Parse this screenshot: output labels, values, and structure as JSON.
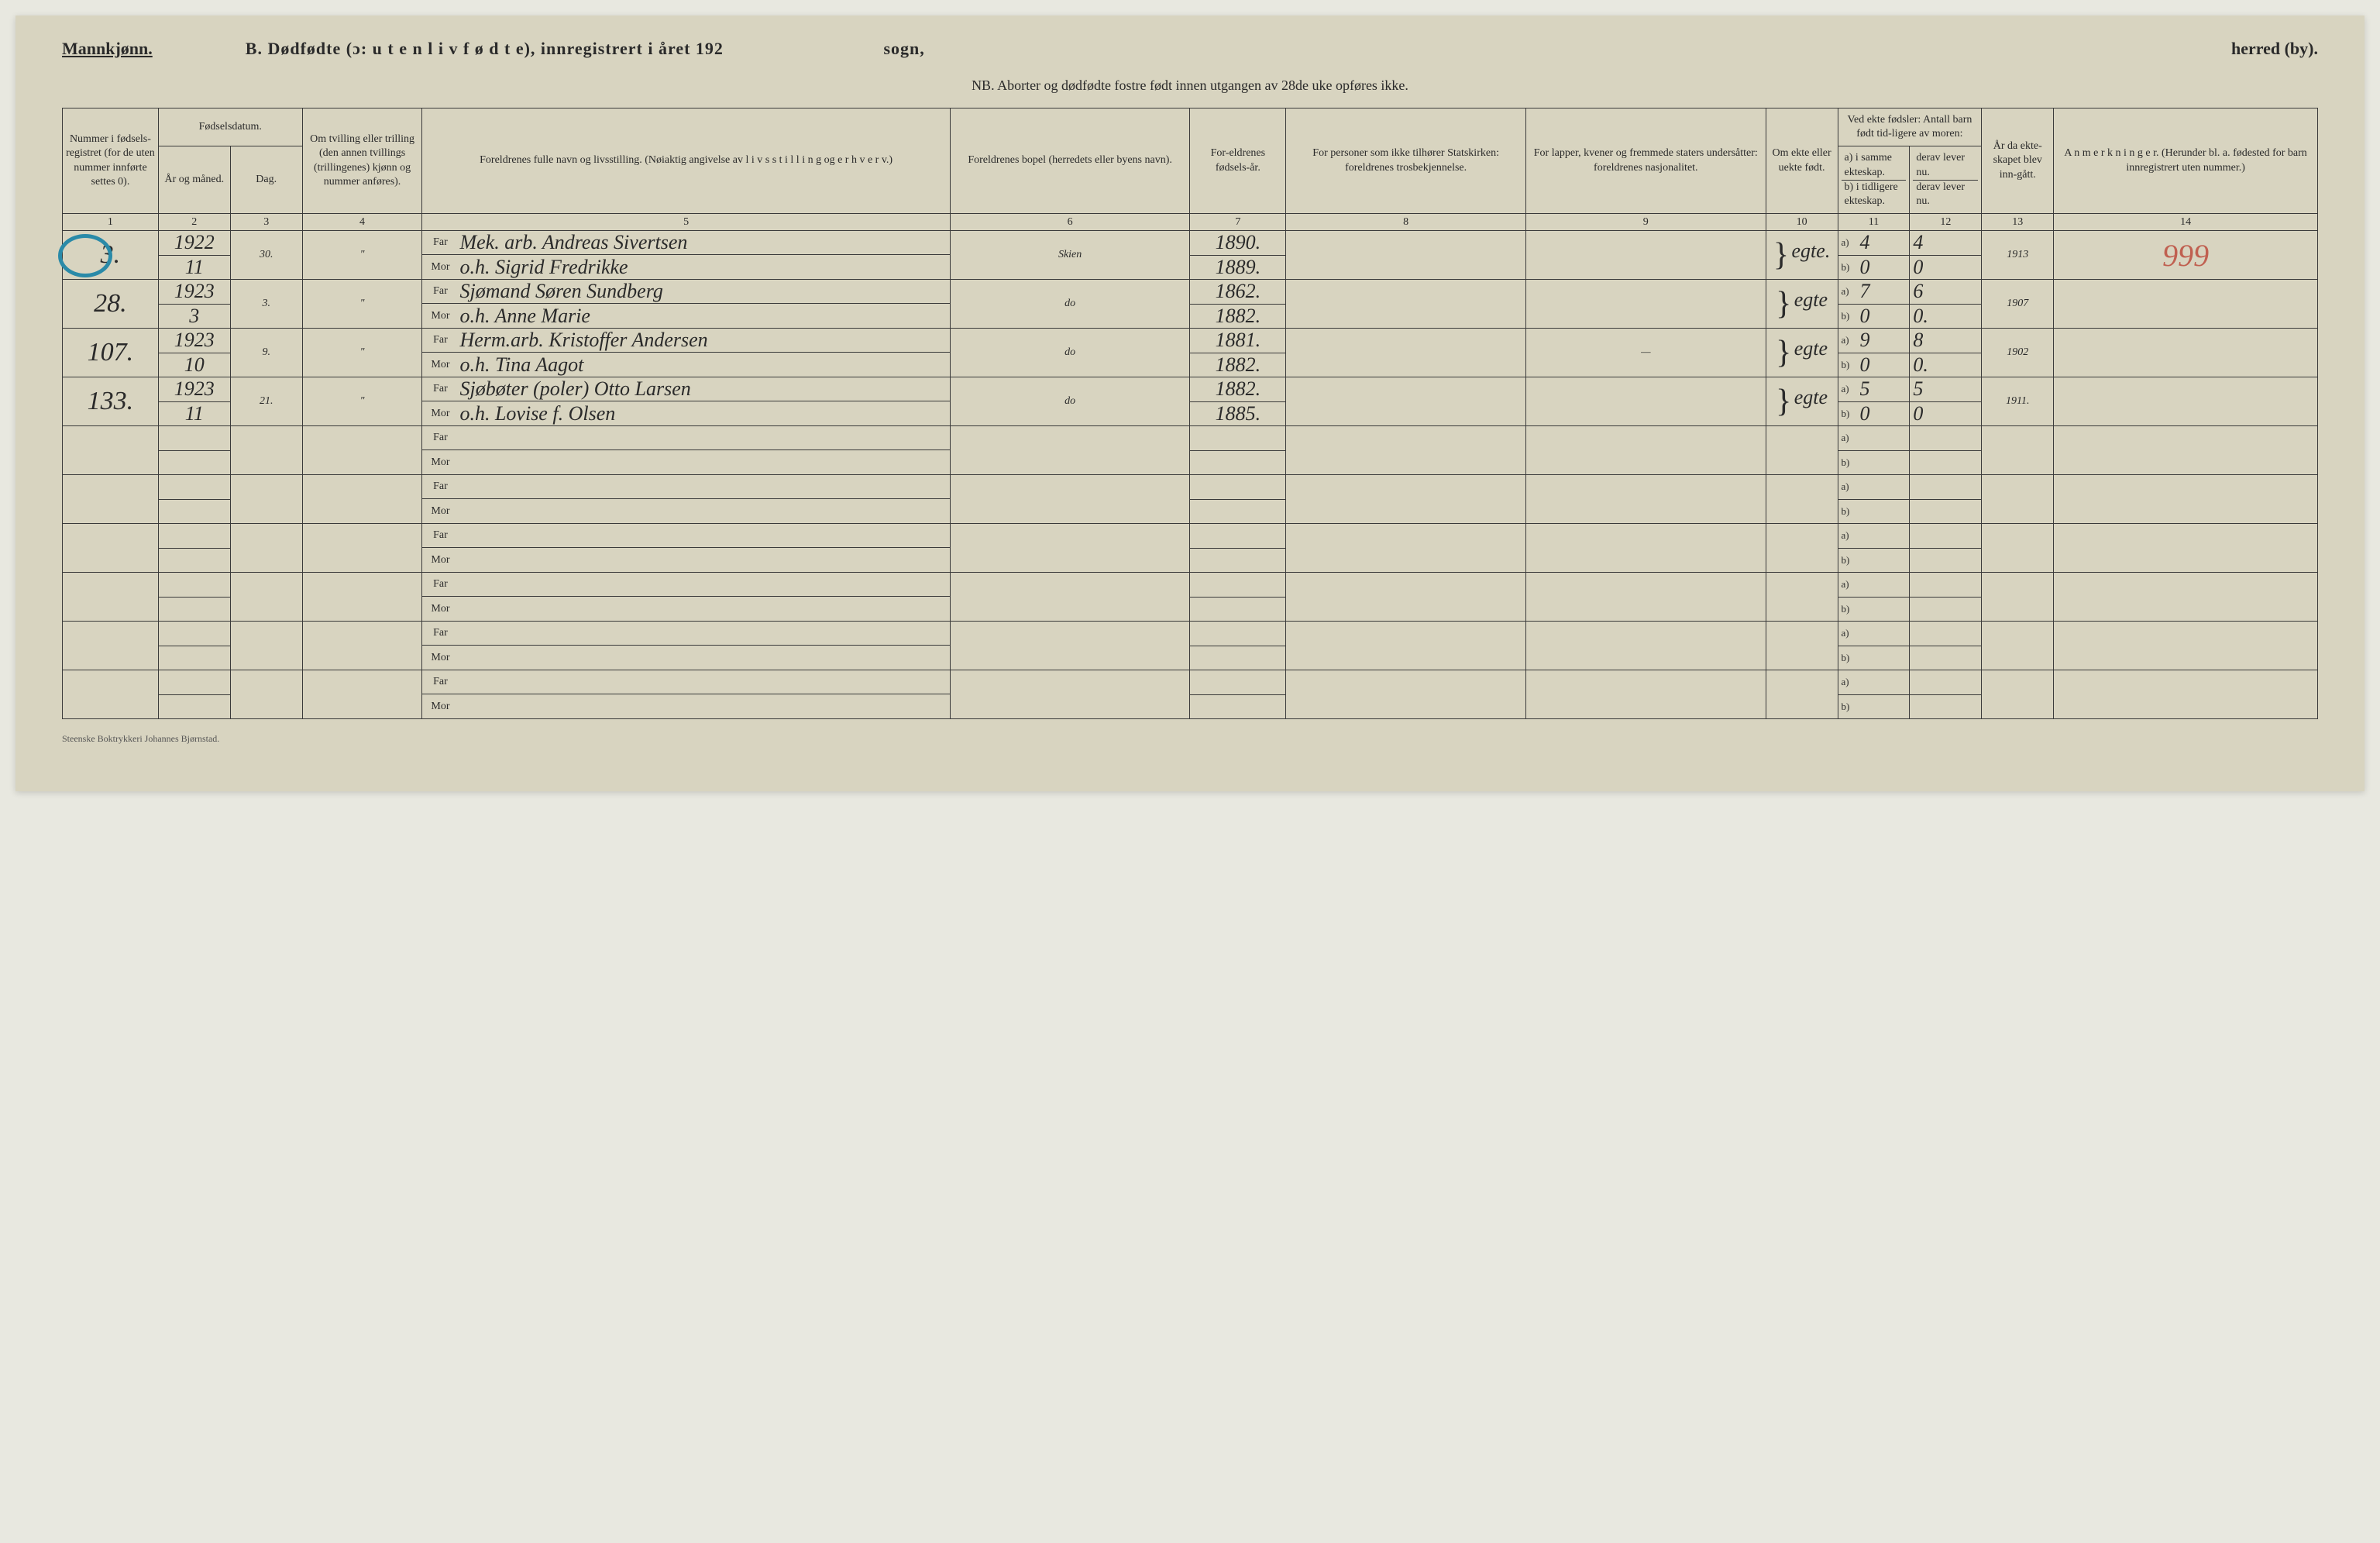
{
  "header": {
    "gender": "Mannkjønn.",
    "title_prefix": "B.",
    "title_main": "Dødfødte (ɔ: u t e n  l i v  f ø d t e), innregistrert i året 192",
    "sogn_label": "sogn,",
    "herred_label": "herred (by).",
    "nb_line": "NB.  Aborter og dødfødte fostre født innen utgangen av 28de uke opføres ikke."
  },
  "columns": {
    "c1": "Nummer i fødsels-registret (for de uten nummer innførte settes 0).",
    "c2_top": "Fødselsdatum.",
    "c2a": "År og måned.",
    "c2b": "Dag.",
    "c4": "Om tvilling eller trilling (den annen tvillings (trillingenes) kjønn og nummer anføres).",
    "c5": "Foreldrenes fulle navn og livsstilling. (Nøiaktig angivelse av l i v s s t i l l i n g og e r h v e r v.)",
    "c6": "Foreldrenes bopel (herredets eller byens navn).",
    "c7": "For-eldrenes fødsels-år.",
    "c8": "For personer som ikke tilhører Statskirken: foreldrenes trosbekjennelse.",
    "c9": "For lapper, kvener og fremmede staters undersåtter: foreldrenes nasjonalitet.",
    "c10": "Om ekte eller uekte født.",
    "c11_top": "Ved ekte fødsler: Antall barn født tid-ligere av moren:",
    "c11a": "a) i samme ekteskap.",
    "c11b": "b) i tidligere ekteskap.",
    "c12a": "derav lever nu.",
    "c12b": "derav lever nu.",
    "c13": "År da ekte-skapet blev inn-gått.",
    "c14": "A n m e r k n i n g e r. (Herunder bl. a. fødested for barn innregistrert uten nummer.)"
  },
  "colnums": [
    "1",
    "2",
    "3",
    "4",
    "5",
    "6",
    "7",
    "8",
    "9",
    "10",
    "11",
    "12",
    "13",
    "14"
  ],
  "far_label": "Far",
  "mor_label": "Mor",
  "ab_a": "a)",
  "ab_b": "b)",
  "rows": [
    {
      "num": "3.",
      "circled": true,
      "year": "1922",
      "month": "11",
      "day": "30.",
      "twins": "\"",
      "far": "Mek. arb. Andreas Sivertsen",
      "mor": "o.h. Sigrid Fredrikke",
      "bopel": "Skien",
      "far_year": "1890.",
      "mor_year": "1889.",
      "col8": "",
      "col9": "",
      "ekte": "egte.",
      "a_same": "4",
      "a_lever": "4",
      "b_same": "0",
      "b_lever": "0",
      "ekteskap_year": "1913",
      "anm": "999",
      "anm_red": true
    },
    {
      "num": "28.",
      "circled": false,
      "year": "1923",
      "month": "3",
      "day": "3.",
      "twins": "\"",
      "far": "Sjømand Søren Sundberg",
      "mor": "o.h. Anne Marie",
      "bopel": "do",
      "far_year": "1862.",
      "mor_year": "1882.",
      "col8": "",
      "col9": "",
      "ekte": "egte",
      "a_same": "7",
      "a_lever": "6",
      "b_same": "0",
      "b_lever": "0.",
      "ekteskap_year": "1907",
      "anm": "",
      "anm_red": false
    },
    {
      "num": "107.",
      "circled": false,
      "year": "1923",
      "month": "10",
      "day": "9.",
      "twins": "\"",
      "far": "Herm.arb. Kristoffer Andersen",
      "mor": "o.h. Tina Aagot",
      "bopel": "do",
      "far_year": "1881.",
      "mor_year": "1882.",
      "col8": "",
      "col9": "—",
      "ekte": "egte",
      "a_same": "9",
      "a_lever": "8",
      "b_same": "0",
      "b_lever": "0.",
      "ekteskap_year": "1902",
      "anm": "",
      "anm_red": false
    },
    {
      "num": "133.",
      "circled": false,
      "year": "1923",
      "month": "11",
      "day": "21.",
      "twins": "\"",
      "far": "Sjøbøter (poler) Otto Larsen",
      "mor": "o.h. Lovise f. Olsen",
      "bopel": "do",
      "far_year": "1882.",
      "mor_year": "1885.",
      "col8": "",
      "col9": "",
      "ekte": "egte",
      "a_same": "5",
      "a_lever": "5",
      "b_same": "0",
      "b_lever": "0",
      "ekteskap_year": "1911.",
      "anm": "",
      "anm_red": false
    }
  ],
  "empty_rows": 6,
  "footer": "Steenske Boktrykkeri Johannes Bjørnstad."
}
